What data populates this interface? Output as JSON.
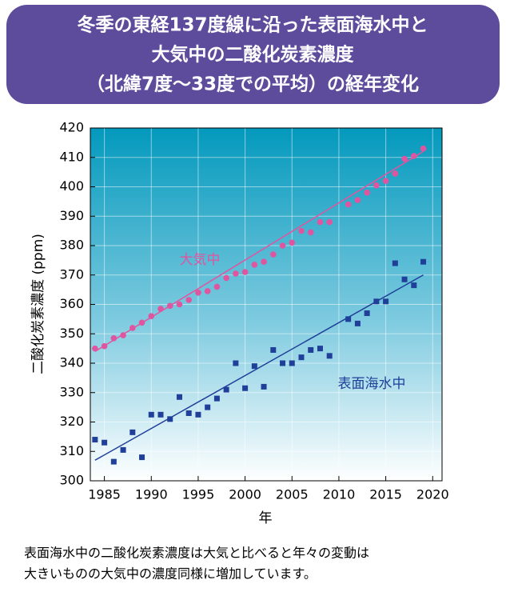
{
  "chart_data": {
    "type": "scatter",
    "title": [
      "冬季の東経137度線に沿った表面海水中と",
      "大気中の二酸化炭素濃度",
      "（北緯7度～33度での平均）の経年変化"
    ],
    "xlabel": "年",
    "ylabel": "二酸化炭素濃度 (ppm)",
    "caption": [
      "表面海水中の二酸化炭素濃度は大気と比べると年々の変動は",
      "大きいものの大気中の濃度同様に増加しています。"
    ],
    "x": [
      1984,
      1985,
      1986,
      1987,
      1988,
      1989,
      1990,
      1991,
      1992,
      1993,
      1994,
      1995,
      1996,
      1997,
      1998,
      1999,
      2000,
      2001,
      2002,
      2003,
      2004,
      2005,
      2006,
      2007,
      2008,
      2009,
      2010,
      2011,
      2012,
      2013,
      2014,
      2015,
      2016,
      2017,
      2018,
      2019
    ],
    "series": [
      {
        "name": "大気中",
        "color": "#e0559f",
        "marker": "circle",
        "values": [
          345,
          345.8,
          348.5,
          349.5,
          352,
          353.8,
          356,
          358.5,
          359.5,
          360,
          361.5,
          364,
          364.5,
          366,
          369,
          370.5,
          371,
          373.5,
          374.5,
          377,
          380,
          381,
          385,
          384.5,
          388,
          388,
          null,
          394,
          395.5,
          398,
          400.5,
          402,
          404.5,
          409.5,
          410.5,
          413
        ],
        "trend": {
          "x": [
            1984,
            2019
          ],
          "values": [
            344,
            412
          ]
        }
      },
      {
        "name": "表面海水中",
        "color": "#1f3f99",
        "marker": "square",
        "values": [
          314,
          313,
          306.5,
          310.5,
          316.5,
          308,
          322.5,
          322.5,
          321,
          328.5,
          323,
          322.5,
          325,
          328,
          331,
          340,
          331.5,
          339,
          332,
          344.5,
          340,
          340,
          342,
          344.5,
          345,
          342.5,
          null,
          355,
          353.5,
          357,
          361,
          361,
          374,
          368.5,
          366.5,
          374.5
        ],
        "trend": {
          "x": [
            1984,
            2019
          ],
          "values": [
            307,
            370
          ]
        }
      }
    ],
    "xlim": [
      1983.5,
      2021
    ],
    "ylim": [
      300,
      420
    ],
    "xticks": [
      1985,
      1990,
      1995,
      2000,
      2005,
      2010,
      2015,
      2020
    ],
    "yticks": [
      300,
      310,
      320,
      330,
      340,
      350,
      360,
      370,
      380,
      390,
      400,
      410,
      420
    ],
    "grid": true
  }
}
